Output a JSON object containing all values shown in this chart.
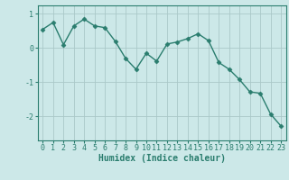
{
  "x": [
    0,
    1,
    2,
    3,
    4,
    5,
    6,
    7,
    8,
    9,
    10,
    11,
    12,
    13,
    14,
    15,
    16,
    17,
    18,
    19,
    20,
    21,
    22,
    23
  ],
  "y": [
    0.55,
    0.75,
    0.1,
    0.65,
    0.85,
    0.65,
    0.6,
    0.2,
    -0.3,
    -0.62,
    -0.15,
    -0.38,
    0.12,
    0.18,
    0.28,
    0.42,
    0.22,
    -0.42,
    -0.62,
    -0.92,
    -1.28,
    -1.32,
    -1.93,
    -2.28
  ],
  "line_color": "#2a7d6e",
  "marker": "D",
  "markersize": 2.5,
  "linewidth": 1.0,
  "bg_color": "#cce8e8",
  "grid_color": "#aac8c8",
  "xlabel": "Humidex (Indice chaleur)",
  "xlabel_fontsize": 7,
  "yticks": [
    -2,
    -1,
    0,
    1
  ],
  "xticks": [
    0,
    1,
    2,
    3,
    4,
    5,
    6,
    7,
    8,
    9,
    10,
    11,
    12,
    13,
    14,
    15,
    16,
    17,
    18,
    19,
    20,
    21,
    22,
    23
  ],
  "ylim": [
    -2.7,
    1.25
  ],
  "xlim": [
    -0.5,
    23.5
  ],
  "tick_fontsize": 6,
  "tick_color": "#2a7d6e",
  "spine_color": "#2a7d6e"
}
